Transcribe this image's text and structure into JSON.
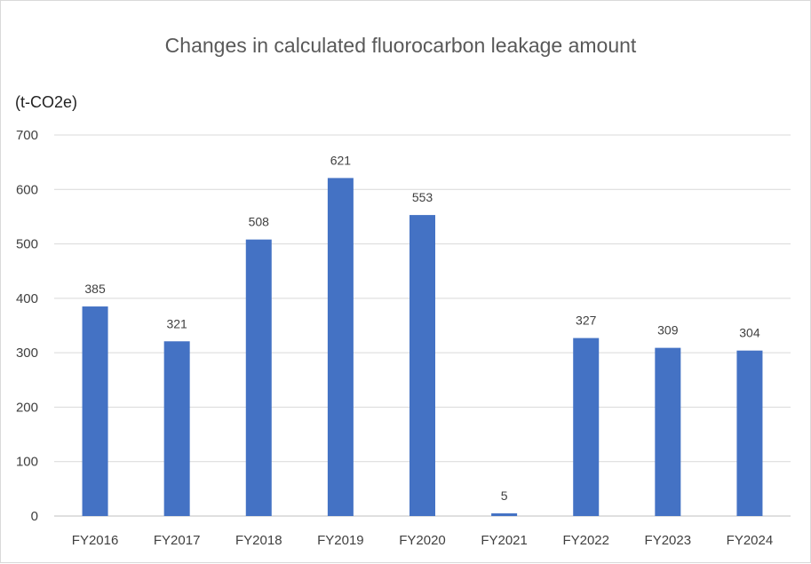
{
  "chart_data": {
    "type": "bar",
    "title": "Changes in  calculated fluorocarbon leakage amount",
    "unit_label": "(t-CO2e)",
    "xlabel": "",
    "ylabel": "",
    "categories": [
      "FY2016",
      "FY2017",
      "FY2018",
      "FY2019",
      "FY2020",
      "FY2021",
      "FY2022",
      "FY2023",
      "FY2024"
    ],
    "values": [
      385,
      321,
      508,
      621,
      553,
      5,
      327,
      309,
      304
    ],
    "ylim": [
      0,
      700
    ],
    "yticks": [
      0,
      100,
      200,
      300,
      400,
      500,
      600,
      700
    ],
    "grid": true,
    "legend": "none",
    "bar_color": "#4472C4"
  }
}
